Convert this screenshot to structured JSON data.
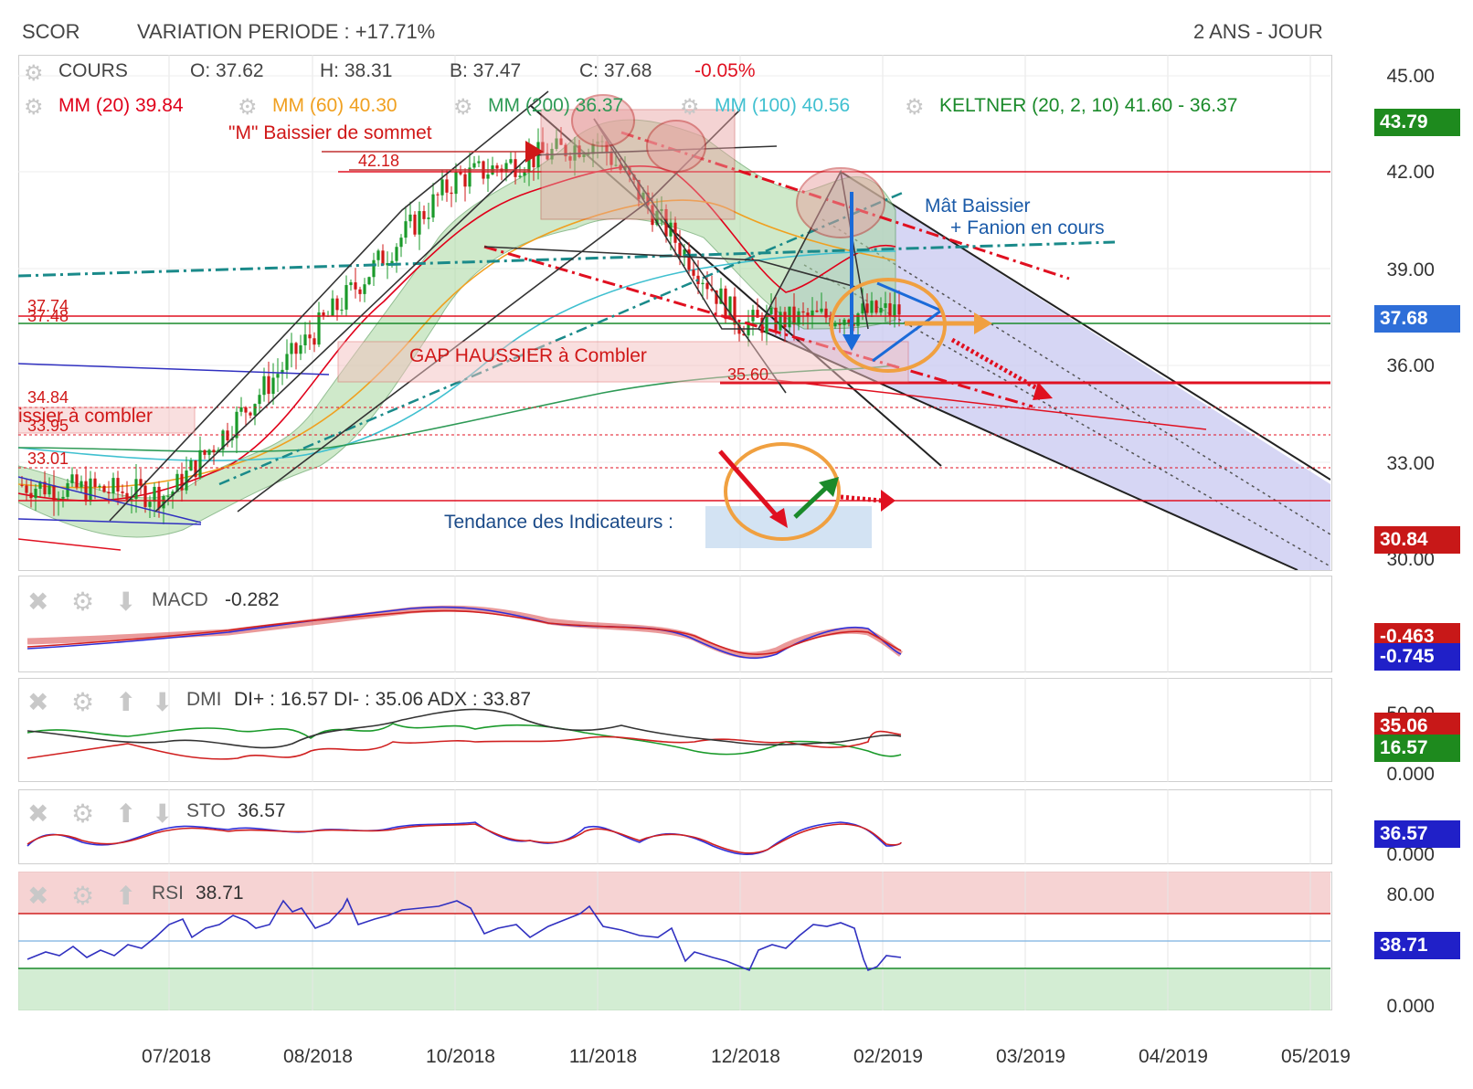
{
  "header": {
    "symbol": "SCOR",
    "variation": "VARIATION PERIODE : +17.71%",
    "period": "2 ANS - JOUR"
  },
  "ohlc": {
    "label": "COURS",
    "open": "O: 37.62",
    "high": "H: 38.31",
    "low": "B: 37.47",
    "close": "C: 37.68",
    "change": "-0.05%"
  },
  "indicators_legend": {
    "mm20": "MM (20)  39.84",
    "mm60": "MM (60)  40.30",
    "mm200": "MM (200)  36.37",
    "mm100": "MM (100)  40.56",
    "keltner": "KELTNER (20, 2, 10)  41.60 - 36.37"
  },
  "colors": {
    "mm20": "#e0001a",
    "mm60": "#f0a020",
    "mm200": "#2e9a56",
    "mm100": "#40c0d0",
    "keltner": "#1a8a2a",
    "keltner_fill": "#a8d8a0",
    "candle_up": "#1a9a2a",
    "candle_down": "#d01818",
    "channel_fill": "#c8c8f0",
    "red_line": "#e01020",
    "green_line": "#1a8a2a",
    "blue_text": "#1a5aa8",
    "orange": "#f0a040"
  },
  "annotations": {
    "m_baissier": "\"M\" Baissier de sommet",
    "level_4218": "42.18",
    "mat_baissier_1": "Mât Baissier",
    "mat_baissier_2": "+ Fanion en cours",
    "gap_haussier": "GAP HAUSSIER à Combler",
    "level_3560": "35.60",
    "level_3774": "37.74",
    "level_3748": "37.48",
    "level_3484": "34.84",
    "gap_baissier": "issier à combler",
    "level_3395": "33.95",
    "level_3301": "33.01",
    "tendance": "Tendance des Indicateurs :"
  },
  "price_axis": {
    "ticks": [
      "45.00",
      "42.00",
      "39.00",
      "36.00",
      "33.00",
      "30.00"
    ],
    "tag_high": "43.79",
    "tag_last": "37.68",
    "tag_low": "30.84"
  },
  "macd": {
    "label": "MACD",
    "value": "-0.282",
    "tag_signal": "-0.463",
    "tag_macd": "-0.745"
  },
  "dmi": {
    "label": "DMI",
    "values": "DI+ : 16.57 DI- : 35.06 ADX : 33.87",
    "tick_top": "50.00",
    "tick_bottom": "0.000",
    "tag_diminus": "35.06",
    "tag_diplus": "16.57"
  },
  "sto": {
    "label": "STO",
    "value": "36.57",
    "tick_bottom": "0.000",
    "tag": "36.57"
  },
  "rsi": {
    "label": "RSI",
    "value": "38.71",
    "tick_top": "80.00",
    "tick_bottom": "0.000",
    "tag": "38.71"
  },
  "dates": [
    "07/2018",
    "08/2018",
    "10/2018",
    "11/2018",
    "12/2018",
    "02/2019",
    "03/2019",
    "04/2019",
    "05/2019"
  ],
  "chart_data": [
    {
      "type": "line",
      "title": "SCOR",
      "ylim": [
        30,
        45
      ],
      "x": [
        "07/2018",
        "08/2018",
        "10/2018",
        "11/2018",
        "12/2018",
        "02/2019"
      ],
      "series": [
        {
          "name": "COURS",
          "values": [
            32.0,
            37.0,
            41.8,
            43.0,
            37.3,
            37.68
          ]
        },
        {
          "name": "MM (20)",
          "values": [
            32.3,
            36.2,
            41.0,
            42.4,
            38.5,
            39.84
          ]
        },
        {
          "name": "MM (60)",
          "values": [
            32.5,
            34.0,
            39.0,
            41.0,
            40.5,
            40.3
          ]
        },
        {
          "name": "MM (100)",
          "values": [
            33.5,
            33.5,
            36.5,
            39.0,
            40.5,
            40.56
          ]
        },
        {
          "name": "MM (200)",
          "values": [
            33.8,
            33.5,
            34.5,
            35.5,
            36.0,
            36.37
          ]
        }
      ],
      "levels": [
        42.18,
        37.74,
        37.48,
        35.6,
        34.84,
        33.95,
        33.01
      ]
    },
    {
      "type": "line",
      "title": "MACD",
      "series": [
        {
          "name": "MACD",
          "values": [
            -0.7,
            0.3,
            0.9,
            0.5,
            -0.7,
            -0.745
          ]
        },
        {
          "name": "Signal",
          "values": [
            -0.6,
            0.1,
            0.7,
            0.6,
            -0.2,
            -0.463
          ]
        }
      ]
    },
    {
      "type": "line",
      "title": "DMI",
      "ylim": [
        0,
        50
      ],
      "series": [
        {
          "name": "DI+",
          "values": [
            15,
            25,
            30,
            22,
            18,
            16.57
          ]
        },
        {
          "name": "DI-",
          "values": [
            30,
            20,
            15,
            20,
            30,
            35.06
          ]
        },
        {
          "name": "ADX",
          "values": [
            35,
            25,
            40,
            30,
            25,
            33.87
          ]
        }
      ]
    },
    {
      "type": "line",
      "title": "STO",
      "ylim": [
        0,
        100
      ],
      "series": [
        {
          "name": "STO",
          "values": [
            20,
            70,
            80,
            70,
            10,
            36.57
          ]
        }
      ]
    },
    {
      "type": "line",
      "title": "RSI",
      "ylim": [
        0,
        100
      ],
      "series": [
        {
          "name": "RSI",
          "values": [
            40,
            62,
            70,
            60,
            25,
            38.71
          ]
        }
      ]
    }
  ]
}
